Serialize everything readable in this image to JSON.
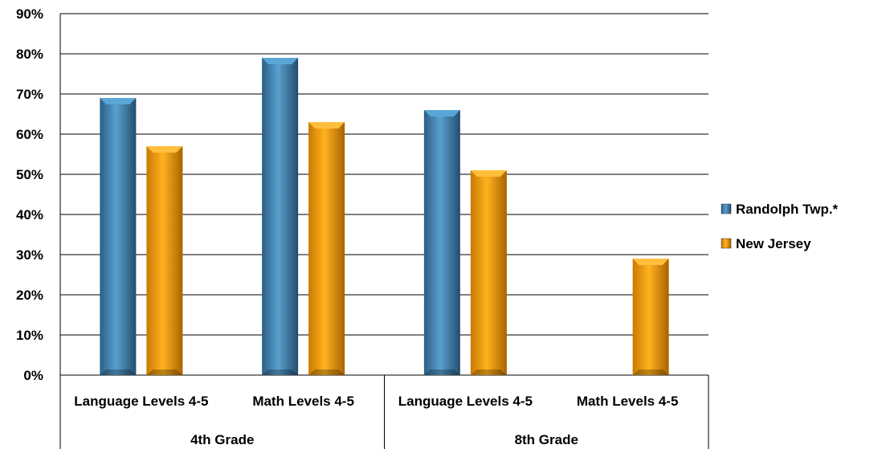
{
  "chart_data": {
    "type": "bar",
    "title": "",
    "xlabel": "",
    "ylabel": "",
    "ylim": [
      0,
      90
    ],
    "yticks": [
      "0%",
      "10%",
      "20%",
      "30%",
      "40%",
      "50%",
      "60%",
      "70%",
      "80%",
      "90%"
    ],
    "grid": true,
    "legend_position": "right",
    "categories": [
      "Language Levels 4-5",
      "Math Levels 4-5",
      "Language Levels 4-5",
      "Math Levels 4-5"
    ],
    "groups": [
      {
        "label": "4th Grade",
        "span": 2
      },
      {
        "label": "8th Grade",
        "span": 2
      }
    ],
    "series": [
      {
        "name": "Randolph Twp.*",
        "color": "#3d82b0",
        "values": [
          69,
          79,
          66,
          null
        ]
      },
      {
        "name": "New Jersey",
        "color": "#f29c00",
        "values": [
          57,
          63,
          51,
          29
        ]
      }
    ]
  }
}
